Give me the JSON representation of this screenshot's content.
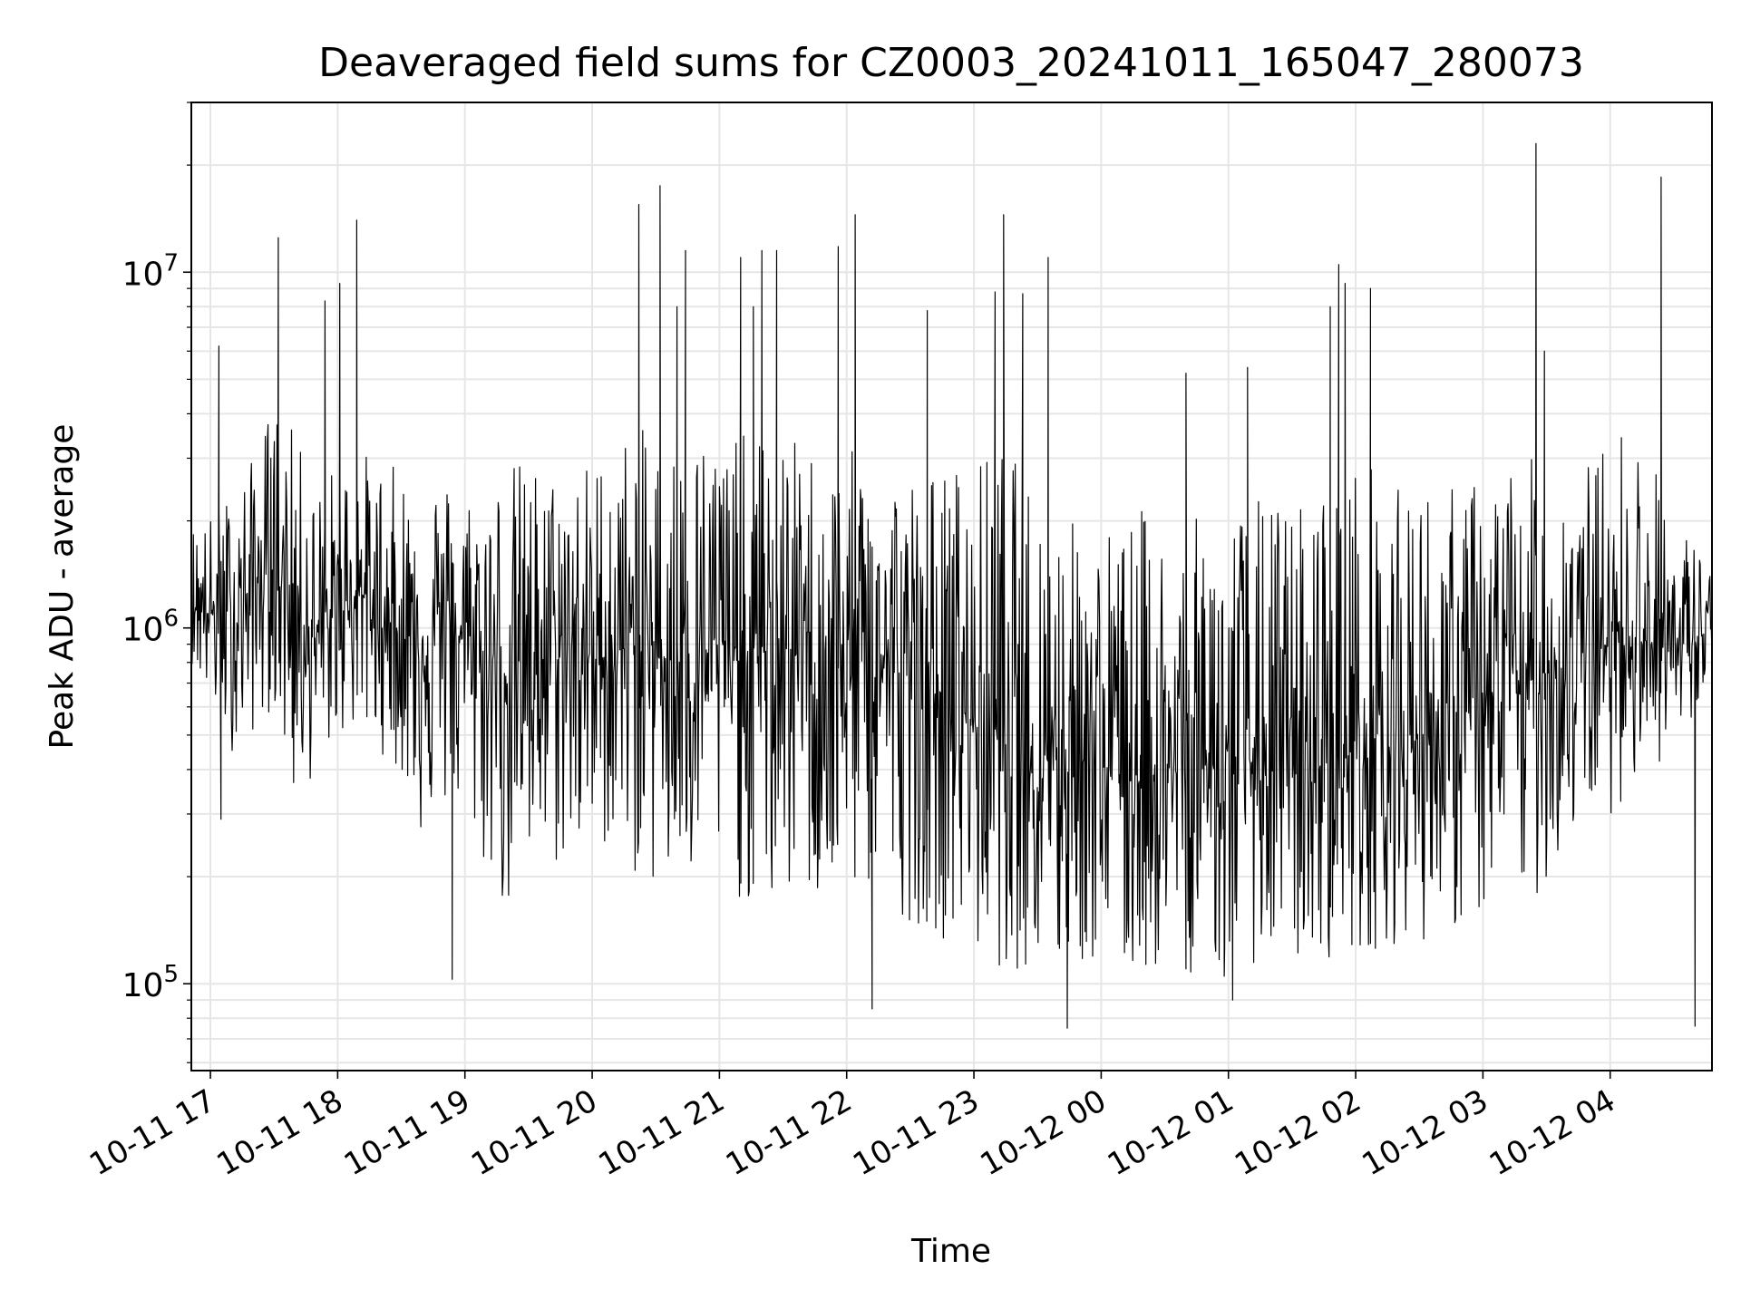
{
  "chart_data": {
    "type": "line",
    "title": "Deaveraged field sums for CZ0003_20241011_165047_280073",
    "xlabel": "Time",
    "ylabel": "Peak ADU - average",
    "yscale": "log",
    "ylim": [
      57000,
      30000000
    ],
    "xlim": [
      "2024-10-11 16:51",
      "2024-10-12 04:48"
    ],
    "grid": true,
    "legend": "none",
    "line_color": "#000000",
    "x_ticks": [
      {
        "value": "2024-10-11 17:00",
        "label": "10-11 17"
      },
      {
        "value": "2024-10-11 18:00",
        "label": "10-11 18"
      },
      {
        "value": "2024-10-11 19:00",
        "label": "10-11 19"
      },
      {
        "value": "2024-10-11 20:00",
        "label": "10-11 20"
      },
      {
        "value": "2024-10-11 21:00",
        "label": "10-11 21"
      },
      {
        "value": "2024-10-11 22:00",
        "label": "10-11 22"
      },
      {
        "value": "2024-10-11 23:00",
        "label": "10-11 23"
      },
      {
        "value": "2024-10-12 00:00",
        "label": "10-12 00"
      },
      {
        "value": "2024-10-12 01:00",
        "label": "10-12 01"
      },
      {
        "value": "2024-10-12 02:00",
        "label": "10-12 02"
      },
      {
        "value": "2024-10-12 03:00",
        "label": "10-12 03"
      },
      {
        "value": "2024-10-12 04:00",
        "label": "10-12 04"
      }
    ],
    "y_ticks": [
      {
        "value": 100000,
        "base": "10",
        "exp": "5"
      },
      {
        "value": 1000000,
        "base": "10",
        "exp": "6"
      },
      {
        "value": 10000000,
        "base": "10",
        "exp": "7"
      }
    ],
    "series": [
      {
        "x": [
          "2024-10-11 16:51",
          "2024-10-11 17:00",
          "2024-10-11 17:10",
          "2024-10-11 17:20",
          "2024-10-11 17:30",
          "2024-10-11 17:40",
          "2024-10-11 17:50",
          "2024-10-11 18:00",
          "2024-10-11 18:10",
          "2024-10-11 18:20",
          "2024-10-11 18:30",
          "2024-10-11 18:40",
          "2024-10-11 18:50",
          "2024-10-11 19:00",
          "2024-10-11 19:10",
          "2024-10-11 19:20",
          "2024-10-11 19:30",
          "2024-10-11 19:40",
          "2024-10-11 19:50",
          "2024-10-11 20:00",
          "2024-10-11 20:10",
          "2024-10-11 20:20",
          "2024-10-11 20:30",
          "2024-10-11 20:40",
          "2024-10-11 20:50",
          "2024-10-11 21:00",
          "2024-10-11 21:10",
          "2024-10-11 21:20",
          "2024-10-11 21:30",
          "2024-10-11 21:40",
          "2024-10-11 21:50",
          "2024-10-11 22:00",
          "2024-10-11 22:10",
          "2024-10-11 22:20",
          "2024-10-11 22:30",
          "2024-10-11 22:40",
          "2024-10-11 22:50",
          "2024-10-11 23:00",
          "2024-10-11 23:10",
          "2024-10-11 23:20",
          "2024-10-11 23:30",
          "2024-10-11 23:40",
          "2024-10-11 23:50",
          "2024-10-12 00:00",
          "2024-10-12 00:10",
          "2024-10-12 00:20",
          "2024-10-12 00:30",
          "2024-10-12 00:40",
          "2024-10-12 00:50",
          "2024-10-12 01:00",
          "2024-10-12 01:10",
          "2024-10-12 01:20",
          "2024-10-12 01:30",
          "2024-10-12 01:40",
          "2024-10-12 01:50",
          "2024-10-12 02:00",
          "2024-10-12 02:10",
          "2024-10-12 02:20",
          "2024-10-12 02:30",
          "2024-10-12 02:40",
          "2024-10-12 02:50",
          "2024-10-12 03:00",
          "2024-10-12 03:10",
          "2024-10-12 03:20",
          "2024-10-12 03:30",
          "2024-10-12 03:40",
          "2024-10-12 03:50",
          "2024-10-12 04:00",
          "2024-10-12 04:10",
          "2024-10-12 04:20",
          "2024-10-12 04:30",
          "2024-10-12 04:40",
          "2024-10-12 04:48"
        ],
        "y": [
          1200000,
          1100000,
          1000000,
          1300000,
          1500000,
          1200000,
          900000,
          1100000,
          1300000,
          1000000,
          1000000,
          900000,
          1100000,
          900000,
          800000,
          750000,
          850000,
          800000,
          900000,
          800000,
          850000,
          900000,
          850000,
          800000,
          850000,
          900000,
          800000,
          850000,
          900000,
          800000,
          750000,
          800000,
          850000,
          800000,
          700000,
          650000,
          600000,
          550000,
          520000,
          500000,
          450000,
          480000,
          450000,
          420000,
          400000,
          380000,
          400000,
          380000,
          420000,
          400000,
          420000,
          400000,
          380000,
          400000,
          420000,
          450000,
          480000,
          450000,
          500000,
          520000,
          550000,
          600000,
          650000,
          700000,
          750000,
          800000,
          850000,
          900000,
          1000000,
          900000,
          850000,
          950000,
          950000
        ],
        "y_low": [
          800000,
          600000,
          450000,
          500000,
          600000,
          300000,
          400000,
          500000,
          500000,
          450000,
          380000,
          250000,
          300000,
          280000,
          200000,
          150000,
          180000,
          200000,
          220000,
          220000,
          250000,
          200000,
          180000,
          170000,
          180000,
          200000,
          170000,
          150000,
          160000,
          180000,
          150000,
          170000,
          180000,
          160000,
          150000,
          140000,
          130000,
          120000,
          110000,
          110000,
          100000,
          100000,
          110000,
          110000,
          100000,
          105000,
          110000,
          105000,
          110000,
          110000,
          115000,
          110000,
          115000,
          110000,
          120000,
          120000,
          125000,
          130000,
          130000,
          140000,
          140000,
          150000,
          160000,
          170000,
          180000,
          250000,
          300000,
          300000,
          350000,
          400000,
          450000,
          500000,
          600000
        ],
        "y_high": [
          2000000,
          2100000,
          2500000,
          3000000,
          4500000,
          3500000,
          2500000,
          3000000,
          3200000,
          3000000,
          2800000,
          3000000,
          2700000,
          2500000,
          2700000,
          3000000,
          3000000,
          2800000,
          3000000,
          3000000,
          3500000,
          3700000,
          3500000,
          3500000,
          3600000,
          3800000,
          3500000,
          3500000,
          3300000,
          3500000,
          3000000,
          3200000,
          3000000,
          3000000,
          2800000,
          2800000,
          3000000,
          2800000,
          3500000,
          3000000,
          2500000,
          2200000,
          2000000,
          2000000,
          2000000,
          2200000,
          2000000,
          2000000,
          2100000,
          2200000,
          2300000,
          2400000,
          2300000,
          2500000,
          2700000,
          3000000,
          3000000,
          2500000,
          2700000,
          2500000,
          2600000,
          2700000,
          3000000,
          3000000,
          3000000,
          2800000,
          3000000,
          3500000,
          4000000,
          3000000,
          2000000,
          1800000,
          1500000
        ]
      }
    ],
    "peaks": [
      {
        "x": "2024-10-11 17:32",
        "y": 12500000
      },
      {
        "x": "2024-10-11 18:09",
        "y": 14000000
      },
      {
        "x": "2024-10-11 18:01",
        "y": 9300000
      },
      {
        "x": "2024-10-11 17:54",
        "y": 8300000
      },
      {
        "x": "2024-10-11 17:04",
        "y": 6200000
      },
      {
        "x": "2024-10-11 20:22",
        "y": 15500000
      },
      {
        "x": "2024-10-11 20:32",
        "y": 17500000
      },
      {
        "x": "2024-10-11 20:44",
        "y": 11500000
      },
      {
        "x": "2024-10-11 20:40",
        "y": 8000000
      },
      {
        "x": "2024-10-11 21:10",
        "y": 11000000
      },
      {
        "x": "2024-10-11 21:20",
        "y": 11500000
      },
      {
        "x": "2024-10-11 21:27",
        "y": 11500000
      },
      {
        "x": "2024-10-11 21:16",
        "y": 8000000
      },
      {
        "x": "2024-10-11 21:56",
        "y": 11800000
      },
      {
        "x": "2024-10-11 22:04",
        "y": 14500000
      },
      {
        "x": "2024-10-11 22:38",
        "y": 7800000
      },
      {
        "x": "2024-10-11 23:10",
        "y": 8800000
      },
      {
        "x": "2024-10-11 23:14",
        "y": 14500000
      },
      {
        "x": "2024-10-11 23:23",
        "y": 8700000
      },
      {
        "x": "2024-10-11 23:35",
        "y": 11000000
      },
      {
        "x": "2024-10-12 01:52",
        "y": 10500000
      },
      {
        "x": "2024-10-12 01:55",
        "y": 9300000
      },
      {
        "x": "2024-10-12 02:07",
        "y": 9000000
      },
      {
        "x": "2024-10-12 01:48",
        "y": 8000000
      },
      {
        "x": "2024-10-12 03:25",
        "y": 23000000
      },
      {
        "x": "2024-10-12 03:29",
        "y": 6000000
      },
      {
        "x": "2024-10-12 04:24",
        "y": 18500000
      },
      {
        "x": "2024-10-12 00:40",
        "y": 5200000
      },
      {
        "x": "2024-10-12 01:09",
        "y": 5400000
      }
    ],
    "dips": [
      {
        "x": "2024-10-11 17:05",
        "y": 290000
      },
      {
        "x": "2024-10-11 18:54",
        "y": 103000
      },
      {
        "x": "2024-10-11 22:12",
        "y": 85000
      },
      {
        "x": "2024-10-11 23:44",
        "y": 75000
      },
      {
        "x": "2024-10-12 00:58",
        "y": 105000
      },
      {
        "x": "2024-10-12 01:02",
        "y": 90000
      },
      {
        "x": "2024-10-12 04:40",
        "y": 76000
      }
    ]
  }
}
